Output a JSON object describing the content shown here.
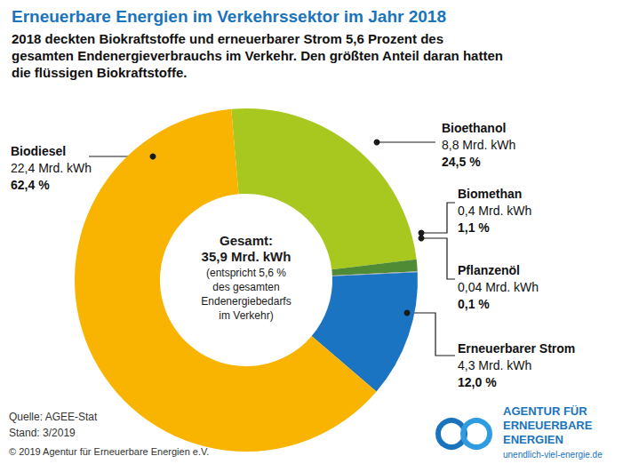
{
  "chart_data": {
    "type": "pie",
    "title": "Erneuerbare Energien im Verkehrssektor im Jahr 2018",
    "subtitle": [
      "2018 deckten Biokraftstoffe und erneuerbarer Strom 5,6 Prozent des",
      "gesamten Endenergieverbrauchs im Verkehr. Den größten Anteil daran hatten",
      "die flüssigen Biokraftstoffe."
    ],
    "categories": [
      "Bioethanol",
      "Biomethan",
      "Pflanzenöl",
      "Erneuerbarer Strom",
      "Biodiesel"
    ],
    "values": [
      24.5,
      1.1,
      0.1,
      12.0,
      62.4
    ],
    "value_labels": [
      "24,5 %",
      "1,1 %",
      "0,1 %",
      "12,0 %",
      "62,4 %"
    ],
    "energy_labels": [
      "8,8 Mrd. kWh",
      "0,4 Mrd. kWh",
      "0,04 Mrd. kWh",
      "4,3 Mrd. kWh",
      "22,4 Mrd. kWh"
    ],
    "colors": [
      "#a9c81f",
      "#4f8a34",
      "#a5a5a5",
      "#1a74c2",
      "#f8b400"
    ],
    "data_labels": true,
    "center_text": [
      "Gesamt:",
      "35,9 Mrd. kWh",
      "(entspricht 5,6 %",
      "des gesamten",
      "Endenergiebedarfs",
      "im Verkehr)"
    ],
    "source": "Quelle: AGEE-Stat",
    "status": "Stand: 3/2019",
    "copyright": "© 2019 Agentur für Erneuerbare Energien e.V.",
    "logo_text": [
      "AGENTUR FÜR",
      "ERNEUERBARE",
      "ENERGIEN"
    ],
    "logo_url": "unendlich-viel-energie.de"
  }
}
